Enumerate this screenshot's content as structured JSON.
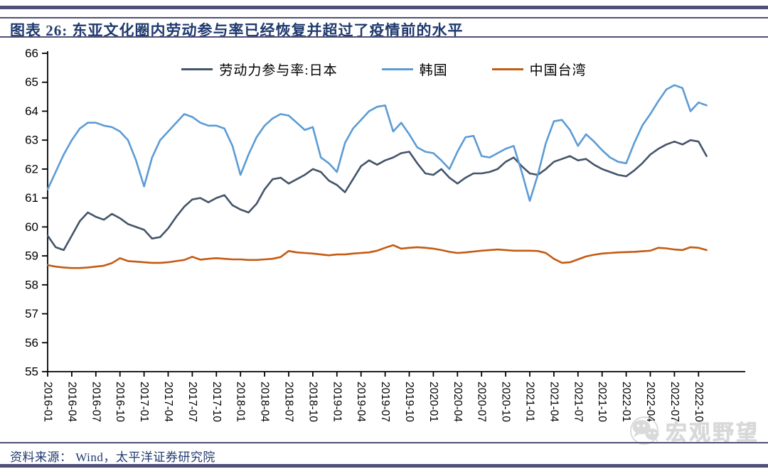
{
  "header": {
    "title": "图表 26:  东亚文化圈内劳动参与率已经恢复并超过了疫情前的水平"
  },
  "footer": {
    "source": "资料来源：  Wind，太平洋证券研究院"
  },
  "watermark": {
    "icon": "wechat-icon",
    "text": "宏观野望"
  },
  "colors": {
    "rule": "#4F4F78",
    "title_text": "#1F3A6E",
    "axis": "#000000"
  },
  "chart_data": {
    "type": "line",
    "title": "",
    "xlabel": "",
    "ylabel": "",
    "ylim": [
      55,
      66
    ],
    "y_ticks": [
      55,
      56,
      57,
      58,
      59,
      60,
      61,
      62,
      63,
      64,
      65,
      66
    ],
    "x_start": "2016-01",
    "x_freq": "monthly",
    "x_ticks": [
      "2016-01",
      "2016-04",
      "2016-07",
      "2016-10",
      "2017-01",
      "2017-04",
      "2017-07",
      "2017-10",
      "2018-01",
      "2018-04",
      "2018-07",
      "2018-10",
      "2019-01",
      "2019-04",
      "2019-07",
      "2019-10",
      "2020-01",
      "2020-04",
      "2020-07",
      "2020-10",
      "2021-01",
      "2021-04",
      "2021-07",
      "2021-10",
      "2022-01",
      "2022-04",
      "2022-07",
      "2022-10"
    ],
    "grid": false,
    "legend_position": "top-center",
    "series": [
      {
        "name": "劳动力参与率:日本",
        "color": "#44546A",
        "values": [
          59.7,
          59.3,
          59.2,
          59.7,
          60.2,
          60.5,
          60.35,
          60.25,
          60.45,
          60.3,
          60.1,
          60.0,
          59.9,
          59.6,
          59.65,
          59.95,
          60.35,
          60.7,
          60.95,
          61.0,
          60.85,
          61.0,
          61.1,
          60.75,
          60.6,
          60.5,
          60.8,
          61.3,
          61.65,
          61.7,
          61.5,
          61.65,
          61.8,
          62.0,
          61.9,
          61.6,
          61.45,
          61.2,
          61.65,
          62.1,
          62.3,
          62.15,
          62.3,
          62.4,
          62.55,
          62.6,
          62.2,
          61.85,
          61.8,
          62.0,
          61.7,
          61.5,
          61.7,
          61.85,
          61.85,
          61.9,
          62.0,
          62.25,
          62.4,
          62.1,
          61.85,
          61.8,
          62.0,
          62.25,
          62.35,
          62.45,
          62.3,
          62.35,
          62.15,
          62.0,
          61.9,
          61.8,
          61.75,
          61.95,
          62.2,
          62.5,
          62.7,
          62.85,
          62.95,
          62.85,
          63.0,
          62.95,
          62.45
        ]
      },
      {
        "name": "韩国",
        "color": "#5B9BD5",
        "values": [
          61.3,
          61.9,
          62.5,
          63.0,
          63.4,
          63.6,
          63.6,
          63.5,
          63.45,
          63.3,
          63.0,
          62.3,
          61.4,
          62.4,
          63.0,
          63.3,
          63.6,
          63.9,
          63.8,
          63.6,
          63.5,
          63.5,
          63.4,
          62.8,
          61.8,
          62.5,
          63.1,
          63.5,
          63.75,
          63.9,
          63.85,
          63.6,
          63.35,
          63.45,
          62.4,
          62.2,
          61.9,
          62.9,
          63.4,
          63.7,
          64.0,
          64.15,
          64.2,
          63.3,
          63.6,
          63.2,
          62.75,
          62.6,
          62.55,
          62.3,
          62.0,
          62.6,
          63.1,
          63.15,
          62.45,
          62.4,
          62.55,
          62.7,
          62.8,
          61.9,
          60.9,
          61.8,
          62.9,
          63.65,
          63.7,
          63.35,
          62.8,
          63.2,
          62.95,
          62.65,
          62.4,
          62.25,
          62.2,
          62.9,
          63.5,
          63.9,
          64.35,
          64.75,
          64.9,
          64.8,
          64.0,
          64.3,
          64.2
        ]
      },
      {
        "name": "中国台湾",
        "color": "#C55A11",
        "values": [
          58.68,
          58.63,
          58.6,
          58.58,
          58.58,
          58.6,
          58.63,
          58.66,
          58.75,
          58.92,
          58.82,
          58.8,
          58.78,
          58.76,
          58.76,
          58.78,
          58.82,
          58.86,
          58.97,
          58.87,
          58.9,
          58.92,
          58.9,
          58.88,
          58.88,
          58.86,
          58.86,
          58.88,
          58.9,
          58.96,
          59.17,
          59.12,
          59.1,
          59.08,
          59.05,
          59.02,
          59.05,
          59.05,
          59.08,
          59.1,
          59.12,
          59.18,
          59.28,
          59.37,
          59.25,
          59.28,
          59.3,
          59.28,
          59.25,
          59.2,
          59.14,
          59.1,
          59.12,
          59.15,
          59.18,
          59.2,
          59.22,
          59.2,
          59.18,
          59.18,
          59.18,
          59.17,
          59.1,
          58.9,
          58.76,
          58.78,
          58.88,
          58.98,
          59.04,
          59.08,
          59.1,
          59.12,
          59.13,
          59.14,
          59.16,
          59.18,
          59.28,
          59.26,
          59.22,
          59.2,
          59.3,
          59.28,
          59.2
        ]
      }
    ]
  }
}
